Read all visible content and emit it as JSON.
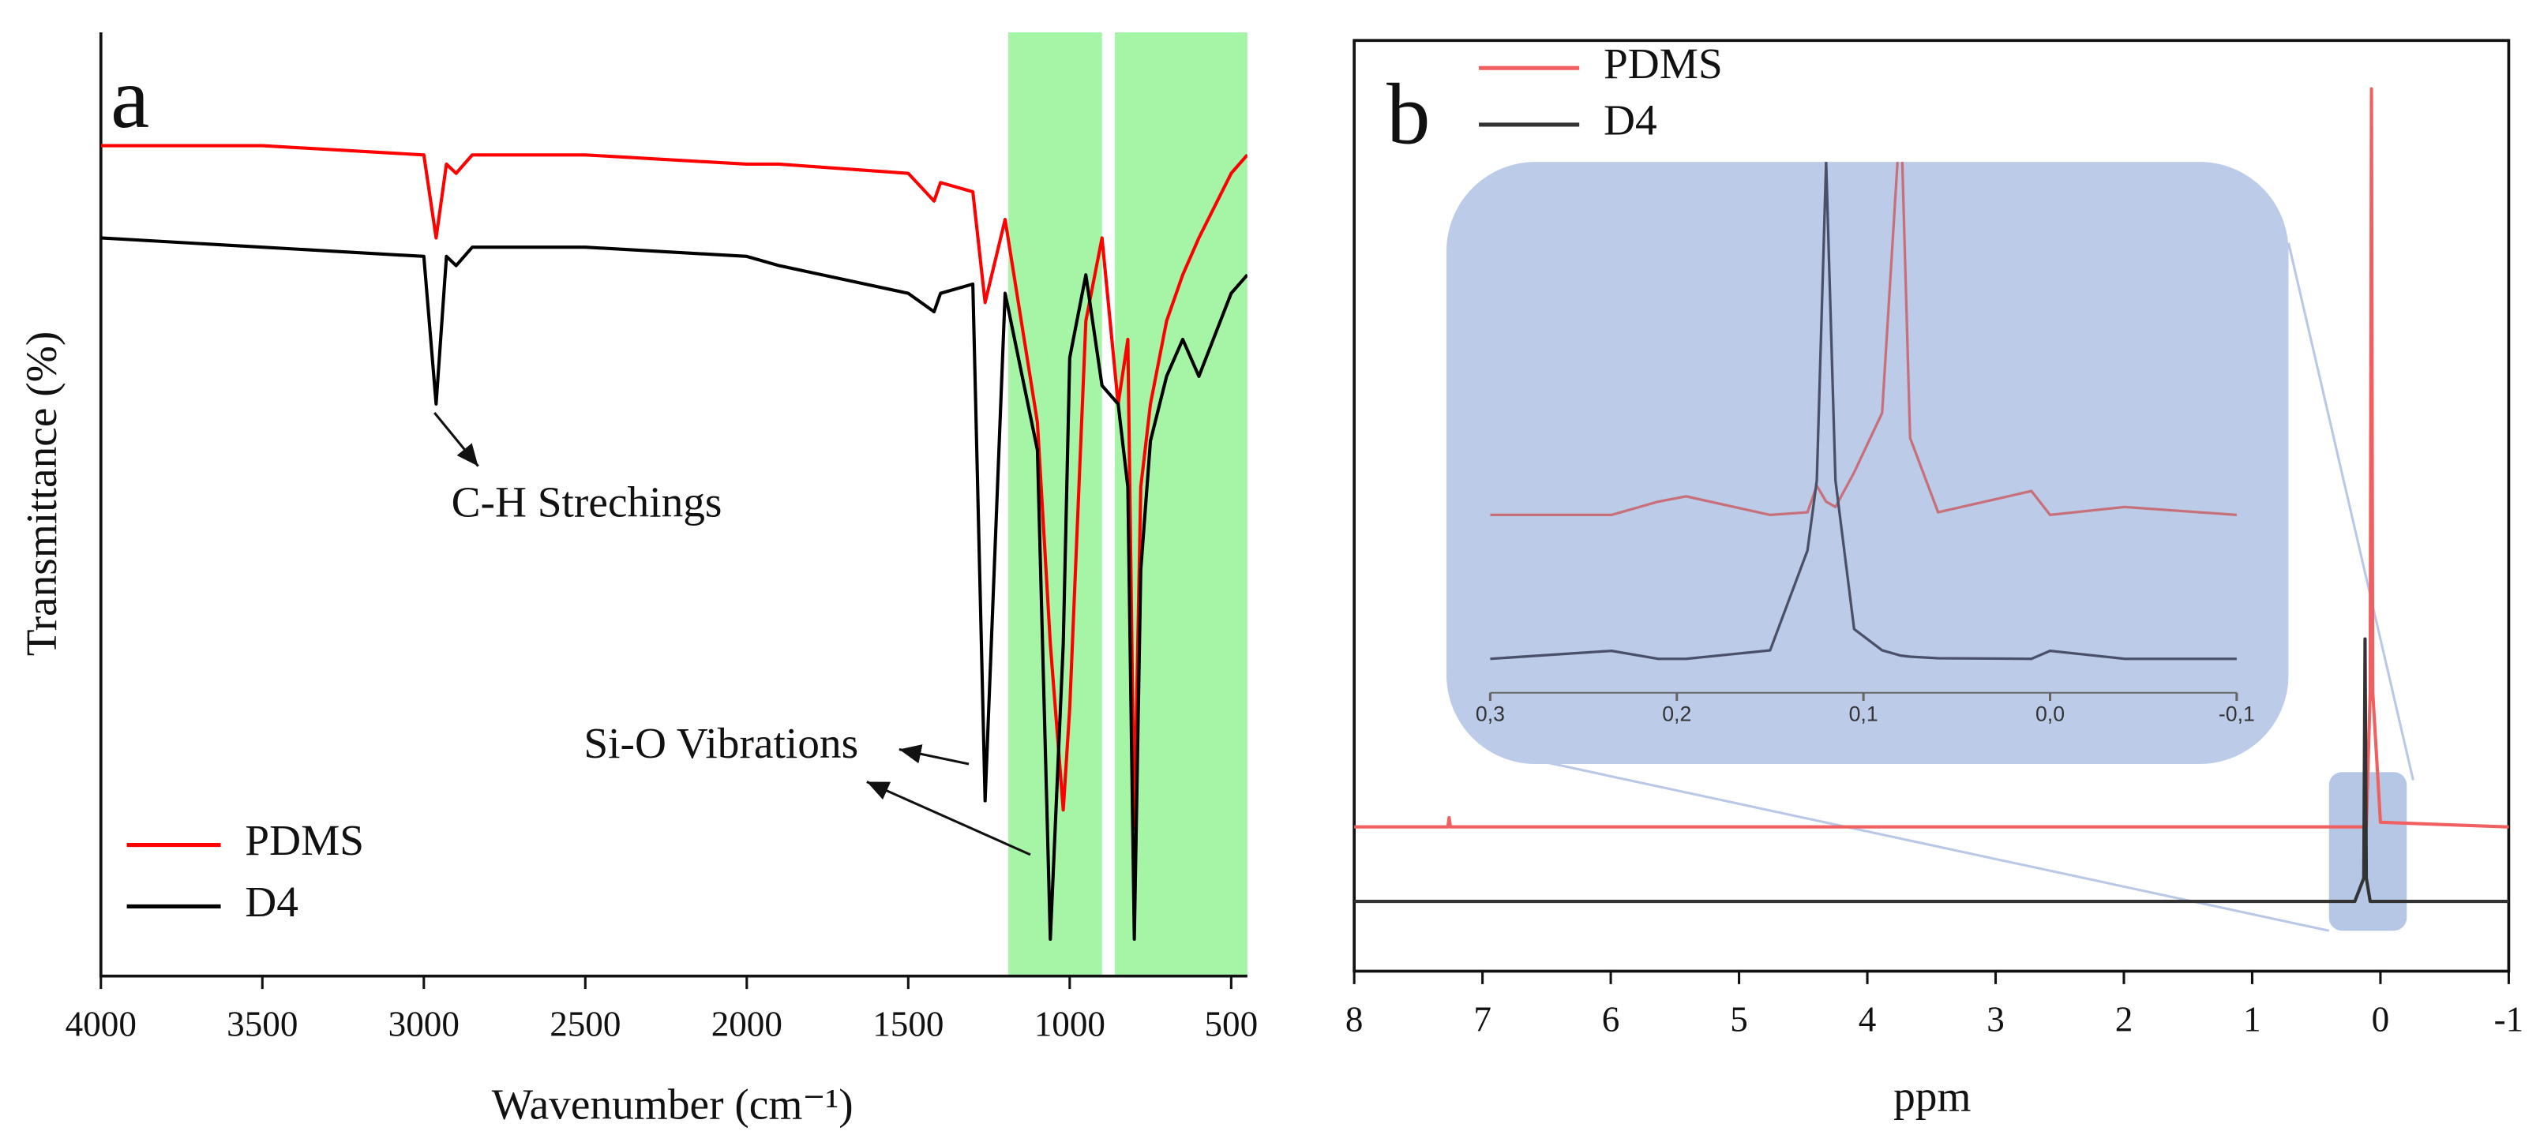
{
  "chart_data": [
    {
      "type": "line",
      "title": "a",
      "x_label": "Wavenumber (cm⁻¹)",
      "y_label": "Transmittance (%)",
      "annotations": [
        "C-H Strechings",
        "Si-O Vibrations"
      ],
      "x": [
        4000,
        3500,
        3000,
        2962,
        2930,
        2900,
        2850,
        2500,
        2000,
        1900,
        1500,
        1420,
        1400,
        1300,
        1262,
        1200,
        1100,
        1060,
        1020,
        1000,
        950,
        900,
        850,
        820,
        800,
        780,
        750,
        700,
        650,
        600,
        500,
        450
      ],
      "series": [
        {
          "name": "PDMS",
          "color": "#ff0000",
          "values": [
            90,
            90,
            89,
            80,
            88,
            87,
            89,
            89,
            88,
            88,
            87,
            84,
            86,
            85,
            73,
            82,
            60,
            36,
            18,
            29,
            71,
            80,
            62,
            69,
            16,
            53,
            62,
            71,
            76,
            80,
            87,
            89
          ]
        },
        {
          "name": "D4",
          "color": "#000000",
          "values": [
            80,
            79,
            78,
            62,
            78,
            77,
            79,
            79,
            78,
            77,
            74,
            72,
            74,
            75,
            19,
            74,
            57,
            4,
            36,
            67,
            76,
            64,
            62,
            53,
            4,
            44,
            58,
            65,
            69,
            65,
            74,
            76
          ]
        }
      ],
      "highlights": [
        {
          "from": 1190,
          "to": 900
        },
        {
          "from": 860,
          "to": 450
        }
      ],
      "highlight_color": "#a6f5a6",
      "xlim": [
        4000,
        450
      ],
      "ylim": [
        0,
        100
      ],
      "xticks": [
        4000,
        3500,
        3000,
        2500,
        2000,
        1500,
        1000,
        500
      ],
      "legend": "lower left"
    },
    {
      "type": "line",
      "title": "b",
      "x_label": "ppm",
      "x": [
        8,
        7.27,
        7.26,
        7.25,
        0.2,
        0.13,
        0.12,
        0.11,
        0.08,
        0.07,
        0.06,
        0,
        -1
      ],
      "series": [
        {
          "name": "PDMS",
          "color": "#f06060",
          "values": [
            15.5,
            15.5,
            16.5,
            15.5,
            15.5,
            15.5,
            16,
            15.5,
            30,
            94.8,
            30,
            16,
            15.5
          ]
        },
        {
          "name": "D4",
          "color": "#333333",
          "values": [
            7.5,
            7.5,
            7.5,
            7.5,
            7.5,
            10,
            35.7,
            10,
            7.5,
            7.5,
            7.5,
            7.5,
            7.5
          ]
        }
      ],
      "xlim": [
        8,
        -1
      ],
      "ylim": [
        0,
        100
      ],
      "xticks": [
        8,
        7,
        6,
        5,
        4,
        3,
        2,
        1,
        0,
        -1
      ],
      "legend": "upper left"
    },
    {
      "type": "line",
      "x": [
        0.3,
        0.235,
        0.21,
        0.195,
        0.15,
        0.13,
        0.125,
        0.12,
        0.115,
        0.105,
        0.09,
        0.08,
        0.075,
        0.06,
        0.01,
        0,
        -0.04,
        -0.1
      ],
      "series": [
        {
          "color": "#c8707a",
          "values": [
            33.5,
            33.5,
            36,
            37,
            33.5,
            34,
            39,
            36,
            35,
            41.5,
            52.7,
            110,
            48,
            34,
            38,
            33.5,
            35,
            33.5
          ]
        },
        {
          "color": "#4a5068",
          "values": [
            6.4,
            7.9,
            6.4,
            6.4,
            8,
            26.8,
            40,
            100,
            40,
            12,
            8,
            7,
            6.8,
            6.5,
            6.4,
            7.9,
            6.4,
            6.4
          ]
        }
      ],
      "xlim": [
        0.3,
        -0.1
      ],
      "ylim": [
        0,
        100
      ],
      "xticks": [
        {
          "value": 0.3,
          "label": "0,3"
        },
        {
          "value": 0.2,
          "label": "0,2"
        },
        {
          "value": 0.1,
          "label": "0,1"
        },
        {
          "value": 0,
          "label": "0,0"
        },
        {
          "value": -0.1,
          "label": "-0,1"
        }
      ]
    }
  ]
}
